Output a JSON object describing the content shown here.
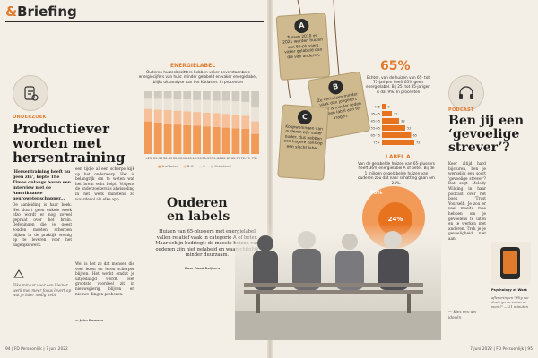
{
  "section": {
    "amp": "&",
    "title": "Briefing"
  },
  "left_article": {
    "kicker": "ONDERZOEK",
    "headline": [
      "Productiever",
      "worden met",
      "hersentraining"
    ],
    "lede": "‘Hersentraining heeft nu geen zin’, kopte The Times onlangs boven een interview met de Amerikaanse neurowetenschapper...",
    "body_col1": "De aanleiding is haar boek. Het duurt geen enkele week ofzo wordt er nog zoveel gepraat over het brein. Oefeningen die je geest zouden moeten scherpen blijken in de praktijk weinig op te leveren voor het dagelijks werk.",
    "body_col2": "een tijdje al een scherpe kijk op het onderwerp. Het is belangrijk om te weten wat het brein echt helpt. Volgens de onderzoekers is afwisseling in het werk minstens zo waardevol als elke app.",
    "body_col3": "Wel is het zo dat mensen die veel lezen en leren scherper blijven. Het werkt omdat je uitgedaagd wordt. Het grootste voordeel zit in nieuwsgierig blijven en nieuwe dingen proberen.",
    "signature": "— John Douwes",
    "quote": "Elke minuut voor een kleiner werk met meer focus levert op wat je later nodig hebt"
  },
  "chart": {
    "title": "ENERGIELABEL",
    "subtitle": "Ouderen huizenbezitters hebben vaker onverstaanbare energiecijfers van huis: minder gelabeld en vaker energielabel, blijkt uit analyse van het Kadaster. In procenten",
    "legend": [
      "A of beter",
      "B-G",
      "C",
      "Onbekend"
    ],
    "note": "Bron: Kadaster"
  },
  "chart_data": {
    "type": "bar",
    "categories": [
      "<25",
      "25-30",
      "30-35",
      "35-40",
      "40-45",
      "45-50",
      "50-55",
      "55-60",
      "60-65",
      "65-70",
      "70-75",
      "75+"
    ],
    "series": [
      {
        "name": "A of beter",
        "values": [
          52,
          50,
          48,
          47,
          46,
          45,
          44,
          43,
          42,
          41,
          40,
          32
        ]
      },
      {
        "name": "B-G",
        "values": [
          20,
          21,
          22,
          22,
          22,
          22,
          22,
          22,
          22,
          22,
          21,
          20
        ]
      },
      {
        "name": "C",
        "values": [
          16,
          17,
          18,
          18,
          19,
          19,
          20,
          20,
          21,
          21,
          22,
          22
        ]
      },
      {
        "name": "Onbekend",
        "values": [
          12,
          12,
          12,
          13,
          13,
          14,
          14,
          15,
          15,
          16,
          17,
          26
        ]
      }
    ],
    "ylim": [
      0,
      100
    ]
  },
  "feature": {
    "headline": [
      "Ouderen",
      "en labels"
    ],
    "intro": "Huizen van 65-plussers met energielabel vallen relatief vaak in categorie A of beter. Maar schijn bedriegt: de meeste huizen van ouderen zijn niet gelabeld en waarschijnlijk minder duurzaam.",
    "byline": "Door Ruud Deijkers"
  },
  "tags": [
    {
      "letter": "A",
      "text": "Tussen 2010 en 2021 werden huizen van 65-plussers vaker gelabeld dan die van anderen."
    },
    {
      "letter": "B",
      "text": "Ze verhuizen minder vaak dan jongeren, dus er is minder reden om een label aan te vragen."
    },
    {
      "letter": "C",
      "text": "Koopwoningen van ouderen zijn vaker ouder, dus hebben een hogere kans op een slecht label."
    }
  ],
  "stat65": {
    "pct": "65%",
    "text": "Echter, van de huizen van 65- tot 75-jarigen heeft 65% geen energielabel. Bij 25- tot 35-jarigen is dat 9%. In procenten",
    "rows": [
      {
        "label": "<35",
        "value": 9
      },
      {
        "label": "35-45",
        "value": 22
      },
      {
        "label": "45-55",
        "value": 38
      },
      {
        "label": "55-65",
        "value": 52
      },
      {
        "label": "65-75",
        "value": 65
      },
      {
        "label": "75+",
        "value": 72
      }
    ]
  },
  "labela": {
    "title": "LABEL A",
    "text": "Van de gelabelde huizen van 65-plussers heeft 36% energielabel A of beter. Bij de 1 miljoen ongelabelde huizen van ouderen zou dat naar schatting gaan om 24%.",
    "outer": "36%",
    "inner": "24%"
  },
  "right_article": {
    "kicker": "PODCAST",
    "headline": [
      "Ben jij een",
      "‘gevoelige",
      "strever’?"
    ],
    "body": "Keer altijd hard bijsturen, ben je werkelijk een soort 'gevoelige strever'? Dat zegt Melody Wilding in haar podcast over het boek 'Trust Yourself'. Je zou er veel moeite mee hebben om je gevoelens te uiten en te werken met anderen. Trek je je gevoeligheid niet aan.",
    "footer_italic": "— Kies een der ideeën",
    "promo_title": "Psychology at Work",
    "promo_text": "afleveringen 'Why we don't go on retire at work?' — 21 minuten"
  },
  "footer": {
    "left": "94 | FD Persoonlijk | 7 juni 2022",
    "right": "7 juni 2022 | FD Persoonlijk | 95"
  }
}
